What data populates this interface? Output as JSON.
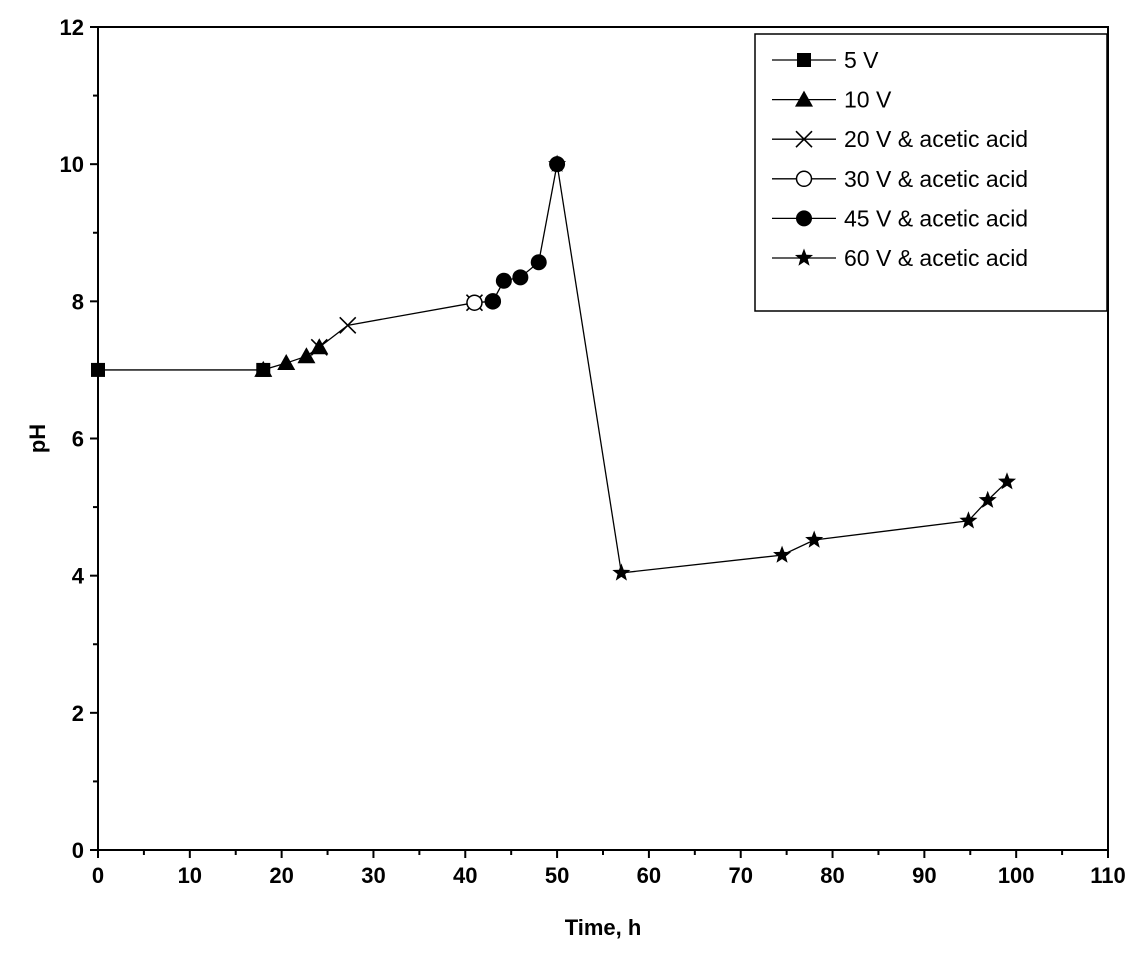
{
  "chart_data": {
    "type": "line",
    "title": "",
    "xlabel": "Time, h",
    "ylabel": "pH",
    "xlim": [
      0,
      110
    ],
    "ylim": [
      0,
      12
    ],
    "x_ticks": [
      0,
      10,
      20,
      30,
      40,
      50,
      60,
      70,
      80,
      90,
      100,
      110
    ],
    "y_ticks": [
      0,
      2,
      4,
      6,
      8,
      10,
      12
    ],
    "grid": false,
    "legend_position": "top-right",
    "series": [
      {
        "name": "5 V",
        "marker": "filled-square",
        "points": [
          [
            0,
            7.0
          ],
          [
            18,
            7.0
          ]
        ]
      },
      {
        "name": "10 V",
        "marker": "filled-triangle",
        "points": [
          [
            18,
            7.0
          ],
          [
            20.5,
            7.1
          ],
          [
            22.7,
            7.2
          ],
          [
            24.1,
            7.33
          ]
        ]
      },
      {
        "name": "20 V & acetic acid",
        "marker": "cross",
        "points": [
          [
            24.1,
            7.33
          ],
          [
            27.2,
            7.65
          ],
          [
            41,
            7.98
          ]
        ]
      },
      {
        "name": "30 V & acetic acid",
        "marker": "open-circle",
        "points": [
          [
            41,
            7.98
          ],
          [
            43,
            8.0
          ]
        ]
      },
      {
        "name": "45 V & acetic acid",
        "marker": "filled-circle",
        "points": [
          [
            43,
            8.0
          ],
          [
            44.2,
            8.3
          ],
          [
            46,
            8.35
          ],
          [
            48,
            8.57
          ],
          [
            50,
            10.0
          ]
        ]
      },
      {
        "name": "60 V & acetic acid",
        "marker": "star",
        "points": [
          [
            50,
            10.0
          ],
          [
            57,
            4.04
          ],
          [
            74.5,
            4.3
          ],
          [
            78,
            4.52
          ],
          [
            94.8,
            4.8
          ],
          [
            96.9,
            5.1
          ],
          [
            99,
            5.37
          ]
        ]
      }
    ]
  }
}
